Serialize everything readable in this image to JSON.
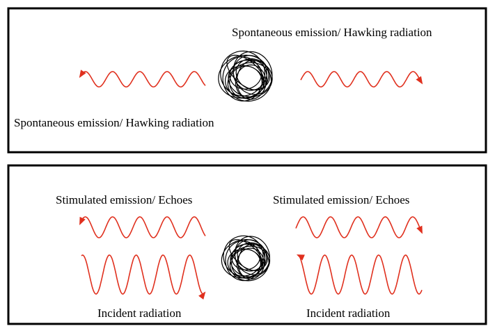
{
  "panels": [
    {
      "labels": [
        "Spontaneous emission/ Hawking radiation",
        "Spontaneous emission/ Hawking radiation"
      ]
    },
    {
      "labels": [
        "Stimulated emission/ Echoes",
        "Stimulated emission/ Echoes",
        "Incident radiation",
        "Incident radiation"
      ]
    }
  ]
}
